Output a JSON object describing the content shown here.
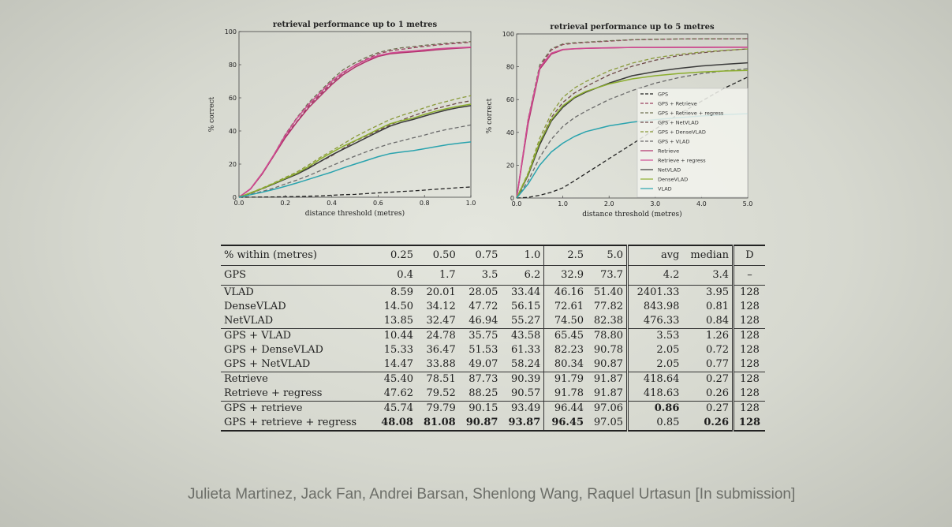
{
  "colors": {
    "gps": "#222222",
    "retrieve": "#b0306a",
    "netvlad": "#3a3a3a",
    "densevlad": "#8cae2e",
    "vlad": "#2aa3ae",
    "retrieve_regress": "#d04c93"
  },
  "chart_data": [
    {
      "type": "line",
      "title": "retrieval performance up to 1 metres",
      "xlabel": "distance threshold (metres)",
      "ylabel": "% correct",
      "xlim": [
        0,
        1.0
      ],
      "ylim": [
        0,
        100
      ],
      "xticks": [
        "0.0",
        "0.2",
        "0.4",
        "0.6",
        "0.8",
        "1.0"
      ],
      "yticks": [
        "0",
        "20",
        "40",
        "60",
        "80",
        "100"
      ],
      "x": [
        0,
        0.05,
        0.1,
        0.15,
        0.2,
        0.25,
        0.3,
        0.35,
        0.4,
        0.45,
        0.5,
        0.55,
        0.6,
        0.65,
        0.7,
        0.75,
        0.8,
        0.85,
        0.9,
        0.95,
        1.0
      ],
      "series": [
        {
          "key": "gps",
          "dash": true,
          "values": [
            0,
            0.05,
            0.1,
            0.2,
            0.3,
            0.4,
            0.6,
            0.8,
            1.2,
            1.5,
            1.7,
            2.2,
            2.6,
            3,
            3.5,
            3.8,
            4.3,
            4.8,
            5.3,
            5.8,
            6.2
          ]
        },
        {
          "key": "gps_retrieve",
          "dash": true,
          "values": [
            0,
            5,
            14,
            25,
            37,
            45.7,
            55,
            62,
            69,
            75,
            79.8,
            83.5,
            86.5,
            88.3,
            89.3,
            90.2,
            91,
            91.8,
            92.5,
            93,
            93.5
          ]
        },
        {
          "key": "gps_retrieve_regress",
          "dash": true,
          "values": [
            0,
            5.2,
            14.5,
            25.5,
            38,
            48.1,
            57,
            64,
            71,
            77,
            81.1,
            84.5,
            87.3,
            89,
            90.2,
            90.9,
            91.7,
            92.4,
            93,
            93.5,
            93.9
          ]
        },
        {
          "key": "gps_netvlad",
          "dash": true,
          "values": [
            0,
            2.5,
            5,
            8,
            11.5,
            14.5,
            18,
            21.5,
            25,
            29.5,
            33.9,
            37,
            40.3,
            43.5,
            46.5,
            49.1,
            51.5,
            53.5,
            55.3,
            57,
            58.2
          ]
        },
        {
          "key": "gps_densevlad",
          "dash": true,
          "values": [
            0,
            2.7,
            5.5,
            8.6,
            12,
            15.3,
            19.5,
            24,
            28,
            32.2,
            36.5,
            40,
            43.5,
            46.8,
            49.3,
            51.5,
            54,
            56.2,
            58,
            59.8,
            61.3
          ]
        },
        {
          "key": "gps_vlad",
          "dash": true,
          "values": [
            0,
            1.8,
            3.5,
            5.5,
            8,
            10.4,
            13,
            16,
            19,
            22,
            24.8,
            27.5,
            30,
            32.3,
            34,
            35.8,
            37.5,
            39.5,
            41,
            42.3,
            43.6
          ]
        },
        {
          "key": "retrieve",
          "dash": false,
          "values": [
            0,
            5,
            14,
            25,
            36,
            45.4,
            54,
            61,
            68,
            74,
            78.5,
            82,
            85,
            86.5,
            87.2,
            87.7,
            88.3,
            89,
            89.5,
            90,
            90.4
          ]
        },
        {
          "key": "retrieve_regress",
          "dash": false,
          "values": [
            0,
            5.2,
            14.5,
            25.5,
            37.5,
            47.6,
            56,
            63,
            70,
            75.5,
            79.5,
            83,
            85.5,
            87,
            87.8,
            88.3,
            88.9,
            89.5,
            90,
            90.3,
            90.6
          ]
        },
        {
          "key": "netvlad",
          "dash": false,
          "values": [
            0,
            2.5,
            5.2,
            8,
            11,
            13.9,
            17.5,
            21.5,
            25.5,
            29,
            32.5,
            36,
            39.5,
            42.8,
            45.2,
            46.9,
            49,
            51,
            52.8,
            54.2,
            55.3
          ]
        },
        {
          "key": "densevlad",
          "dash": false,
          "values": [
            0,
            2.6,
            5.3,
            8.3,
            11.4,
            14.5,
            18.5,
            23,
            27,
            30.8,
            34.1,
            37.5,
            41,
            44.3,
            46.2,
            47.7,
            50,
            52,
            53.6,
            55,
            56.2
          ]
        },
        {
          "key": "vlad",
          "dash": false,
          "values": [
            0,
            1.5,
            3,
            4.7,
            6.6,
            8.6,
            10.8,
            13,
            15.2,
            17.7,
            20,
            22.2,
            24.5,
            26.3,
            27.3,
            28.1,
            29.3,
            30.5,
            31.7,
            32.6,
            33.4
          ]
        }
      ]
    },
    {
      "type": "line",
      "title": "retrieval performance up to 5 metres",
      "xlabel": "distance threshold (metres)",
      "ylabel": "% correct",
      "xlim": [
        0,
        5.0
      ],
      "ylim": [
        0,
        100
      ],
      "xticks": [
        "0.0",
        "1.0",
        "2.0",
        "3.0",
        "4.0",
        "5.0"
      ],
      "yticks": [
        "0",
        "20",
        "40",
        "60",
        "80",
        "100"
      ],
      "legend_position": "lower-right",
      "x": [
        0,
        0.25,
        0.5,
        0.75,
        1.0,
        1.25,
        1.5,
        2.0,
        2.5,
        3.0,
        3.5,
        4.0,
        4.5,
        5.0
      ],
      "series": [
        {
          "key": "gps",
          "dash": true,
          "label": "GPS",
          "values": [
            0,
            0.4,
            1.7,
            3.5,
            6.2,
            10.5,
            15,
            24,
            32.9,
            42,
            51,
            59,
            67,
            73.7
          ]
        },
        {
          "key": "gps_retrieve",
          "dash": true,
          "label": "GPS + Retrieve",
          "values": [
            0,
            45.7,
            79.8,
            90.2,
            93.5,
            94.3,
            94.8,
            95.6,
            96.4,
            96.7,
            96.9,
            97,
            97,
            97.1
          ]
        },
        {
          "key": "gps_retrieve_regress",
          "dash": true,
          "label": "GPS + Retrieve + regress",
          "values": [
            0,
            48.1,
            81.1,
            90.9,
            93.9,
            94.6,
            95,
            95.8,
            96.5,
            96.8,
            96.9,
            97,
            97,
            97.05
          ]
        },
        {
          "key": "gps_netvlad",
          "dash": true,
          "label": "GPS + NetVLAD",
          "values": [
            0,
            14.5,
            33.9,
            49.1,
            58.2,
            64,
            68,
            75,
            80.3,
            84,
            86.8,
            88.5,
            89.8,
            90.9
          ]
        },
        {
          "key": "gps_densevlad",
          "dash": true,
          "label": "GPS + DenseVLAD",
          "values": [
            0,
            15.3,
            36.5,
            51.5,
            61.3,
            67,
            71,
            77.5,
            82.2,
            85.5,
            87.5,
            89,
            90,
            90.8
          ]
        },
        {
          "key": "gps_vlad",
          "dash": true,
          "label": "GPS + VLAD",
          "values": [
            0,
            10.4,
            24.8,
            35.8,
            43.6,
            49,
            53,
            60,
            65.5,
            70,
            73.3,
            75.8,
            77.5,
            78.8
          ]
        },
        {
          "key": "retrieve",
          "dash": false,
          "label": "Retrieve",
          "values": [
            0,
            45.4,
            78.5,
            87.7,
            90.4,
            90.9,
            91.2,
            91.5,
            91.8,
            91.8,
            91.85,
            91.85,
            91.87,
            91.87
          ]
        },
        {
          "key": "retrieve_regress",
          "dash": false,
          "label": "Retrieve + regress",
          "values": [
            0,
            47.6,
            79.5,
            88.3,
            90.6,
            91,
            91.3,
            91.6,
            91.8,
            91.8,
            91.85,
            91.85,
            91.87,
            91.87
          ]
        },
        {
          "key": "netvlad",
          "dash": false,
          "label": "NetVLAD",
          "values": [
            0,
            13.9,
            32.5,
            46.9,
            55.3,
            61,
            64.5,
            70,
            74.5,
            77,
            79,
            80.5,
            81.5,
            82.4
          ]
        },
        {
          "key": "densevlad",
          "dash": false,
          "label": "DenseVLAD",
          "values": [
            0,
            14.5,
            34.1,
            47.7,
            56.2,
            61.5,
            65,
            69.5,
            72.6,
            74.5,
            75.8,
            76.8,
            77.4,
            77.8
          ]
        },
        {
          "key": "vlad",
          "dash": false,
          "label": "VLAD",
          "values": [
            0,
            8.6,
            20,
            28.1,
            33.4,
            37.5,
            40.5,
            44,
            46.2,
            47.8,
            49,
            50,
            50.8,
            51.4
          ]
        }
      ]
    },
    {
      "type": "table",
      "header": [
        "% within (metres)",
        "0.25",
        "0.50",
        "0.75",
        "1.0",
        "2.5",
        "5.0",
        "avg",
        "median",
        "D"
      ],
      "groups": [
        {
          "rows": [
            {
              "label": "GPS",
              "cells": [
                "0.4",
                "1.7",
                "3.5",
                "6.2",
                "32.9",
                "73.7",
                "4.2",
                "3.4",
                "–"
              ]
            }
          ]
        },
        {
          "rows": [
            {
              "label": "VLAD",
              "cells": [
                "8.59",
                "20.01",
                "28.05",
                "33.44",
                "46.16",
                "51.40",
                "2401.33",
                "3.95",
                "128"
              ]
            },
            {
              "label": "DenseVLAD",
              "cells": [
                "14.50",
                "34.12",
                "47.72",
                "56.15",
                "72.61",
                "77.82",
                "843.98",
                "0.81",
                "128"
              ]
            },
            {
              "label": "NetVLAD",
              "cells": [
                "13.85",
                "32.47",
                "46.94",
                "55.27",
                "74.50",
                "82.38",
                "476.33",
                "0.84",
                "128"
              ]
            }
          ]
        },
        {
          "rows": [
            {
              "label": "GPS + VLAD",
              "cells": [
                "10.44",
                "24.78",
                "35.75",
                "43.58",
                "65.45",
                "78.80",
                "3.53",
                "1.26",
                "128"
              ]
            },
            {
              "label": "GPS + DenseVLAD",
              "cells": [
                "15.33",
                "36.47",
                "51.53",
                "61.33",
                "82.23",
                "90.78",
                "2.05",
                "0.72",
                "128"
              ]
            },
            {
              "label": "GPS + NetVLAD",
              "cells": [
                "14.47",
                "33.88",
                "49.07",
                "58.24",
                "80.34",
                "90.87",
                "2.05",
                "0.77",
                "128"
              ]
            }
          ]
        },
        {
          "rows": [
            {
              "label": "Retrieve",
              "cells": [
                "45.40",
                "78.51",
                "87.73",
                "90.39",
                "91.79",
                "91.87",
                "418.64",
                "0.27",
                "128"
              ]
            },
            {
              "label": "Retrieve + regress",
              "cells": [
                "47.62",
                "79.52",
                "88.25",
                "90.57",
                "91.78",
                "91.87",
                "418.63",
                "0.26",
                "128"
              ]
            }
          ]
        },
        {
          "rows": [
            {
              "label": "GPS + retrieve",
              "cells": [
                "45.74",
                "79.79",
                "90.15",
                "93.49",
                "96.44",
                "97.06",
                "0.86",
                "0.27",
                "128"
              ],
              "bold": [
                6
              ]
            },
            {
              "label": "GPS + retrieve + regress",
              "cells": [
                "48.08",
                "81.08",
                "90.87",
                "93.87",
                "96.45",
                "97.05",
                "0.85",
                "0.26",
                "128"
              ],
              "bold": [
                0,
                1,
                2,
                3,
                4,
                7,
                8
              ]
            }
          ]
        }
      ]
    }
  ],
  "footer": {
    "authors": "Julieta Martinez, Jack Fan, Andrei Barsan, Shenlong Wang, Raquel Urtasun [In submission]"
  }
}
